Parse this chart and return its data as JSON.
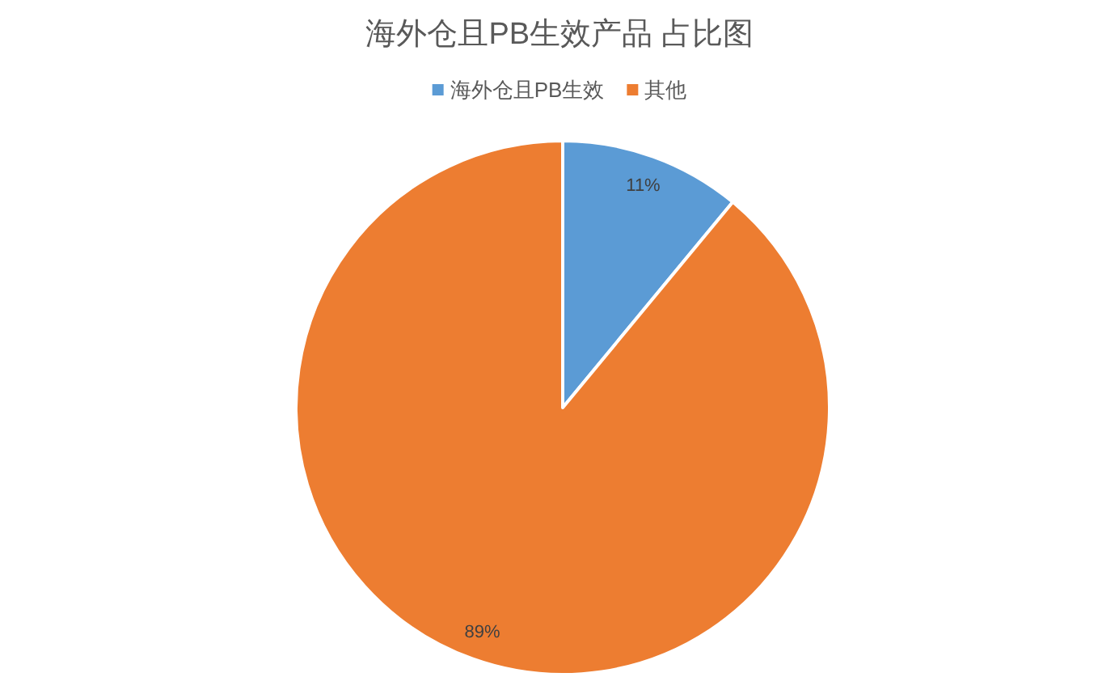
{
  "chart_data": {
    "type": "pie",
    "title": "海外仓且PB生效产品 占比图",
    "categories": [
      "海外仓且PB生效",
      "其他"
    ],
    "values": [
      11,
      89
    ],
    "colors": [
      "#5b9bd5",
      "#ed7d31"
    ],
    "value_labels": [
      "11%",
      "89%"
    ],
    "legend": "top"
  }
}
